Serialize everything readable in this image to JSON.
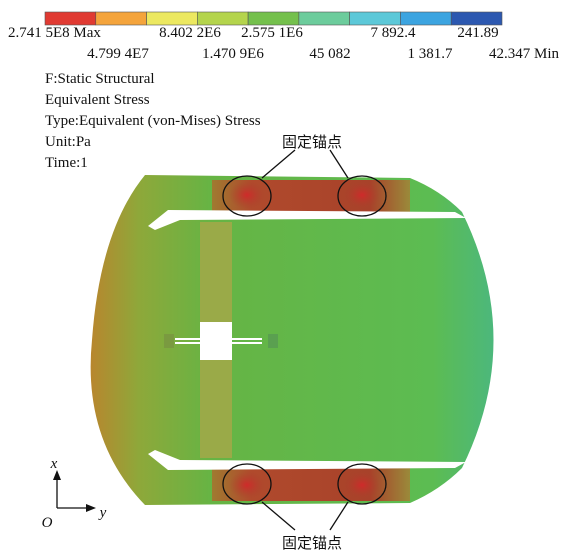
{
  "legend": {
    "colors": [
      "#e03a32",
      "#f4a43c",
      "#ece860",
      "#b4d44c",
      "#74c04c",
      "#6ccc9c",
      "#5cc8d8",
      "#3ca4e0",
      "#2c58b0"
    ],
    "labels_top": [
      "2.741 5E8 Max",
      "8.402 2E6",
      "2.575 1E6",
      "7 892.4",
      "241.89"
    ],
    "labels_bottom": [
      "4.799 4E7",
      "1.470 9E6",
      "45 082",
      "1 381.7",
      "42.347 Min"
    ]
  },
  "info": [
    "F:Static Structural",
    "Equivalent Stress",
    "Type:Equivalent (von-Mises) Stress",
    "Unit:Pa",
    "Time:1"
  ],
  "annotations": [
    "固定锚点",
    "固定锚点"
  ],
  "axes": {
    "x": "x",
    "y": "y",
    "origin": "O"
  }
}
